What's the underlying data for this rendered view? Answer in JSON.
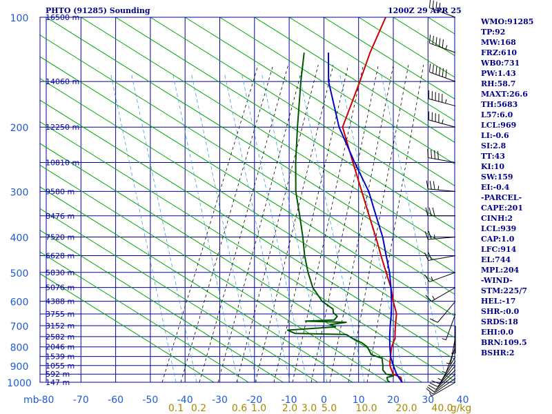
{
  "header": {
    "station_title": "PHTO (91285) Sounding",
    "valid_time": "1200Z 29 APR 25"
  },
  "colors": {
    "axis_blue": "#0000a0",
    "label_blue": "#1e5ad8",
    "dry_adiabat_green": "#00aa00",
    "moist_adiabat_black": "#000000",
    "mixing_ratio_cyan": "#3aa0d8",
    "temperature_red": "#cc0000",
    "dewpoint_green": "#005500",
    "parcel_blue": "#0000cc",
    "mixing_ratio_label": "#a88800"
  },
  "stats": [
    "WMO:91285",
    "TP:92",
    "MW:168",
    "FRZ:610",
    "WB0:731",
    "PW:1.43",
    "RH:58.7",
    "MAXT:26.6",
    "TH:5683",
    "L57:6.0",
    "LCL:969",
    "LI:-0.6",
    "SI:2.8",
    "TT:43",
    "KI:10",
    "SW:159",
    "EI:-0.4",
    "-PARCEL-",
    "CAPE:201",
    "CINH:2",
    "LCL:939",
    "CAP:1.0",
    "LFC:914",
    "EL:744",
    "MPL:204",
    "-WIND-",
    "STM:225/7",
    "HEL:-17",
    "SHR-:0.0",
    "SRDS:18",
    "EHI:0.0",
    "BRN:109.5",
    "BSHR:2"
  ],
  "chart_data": {
    "type": "line",
    "skew_t": true,
    "x_unit_label": "mb",
    "mixing_ratio_unit": "g/kg",
    "xlim": [
      -80,
      40
    ],
    "ylim": [
      1000,
      100
    ],
    "y_log": true,
    "pressure_ticks": [
      100,
      200,
      300,
      400,
      500,
      600,
      700,
      800,
      900,
      1000
    ],
    "temperature_ticks": [
      -80,
      -70,
      -60,
      -50,
      -40,
      -30,
      -20,
      -10,
      0,
      10,
      20,
      30,
      40
    ],
    "height_labels": [
      {
        "p": 100,
        "text": "16500 m"
      },
      {
        "p": 150,
        "text": "14060 m"
      },
      {
        "p": 200,
        "text": "12250 m"
      },
      {
        "p": 250,
        "text": "10810 m"
      },
      {
        "p": 300,
        "text": "9580 m"
      },
      {
        "p": 350,
        "text": "8476 m"
      },
      {
        "p": 400,
        "text": "7520 m"
      },
      {
        "p": 450,
        "text": "6628 m"
      },
      {
        "p": 500,
        "text": "5830 m"
      },
      {
        "p": 550,
        "text": "5076 m"
      },
      {
        "p": 600,
        "text": "4388 m"
      },
      {
        "p": 650,
        "text": "3755 m"
      },
      {
        "p": 700,
        "text": "3152 m"
      },
      {
        "p": 750,
        "text": "2582 m"
      },
      {
        "p": 800,
        "text": "2046 m"
      },
      {
        "p": 850,
        "text": "1539 m"
      },
      {
        "p": 900,
        "text": "1055 m"
      },
      {
        "p": 950,
        "text": "592 m"
      },
      {
        "p": 1000,
        "text": "147 m"
      }
    ],
    "mixing_ratio_labels": [
      "0.1",
      "0.2",
      "0.6",
      "1.0",
      "2.0",
      "3.0",
      "5.0",
      "10.0",
      "20.0",
      "40.0"
    ],
    "series": [
      {
        "role": "temperature",
        "points": [
          [
            1009,
            24
          ],
          [
            1000,
            22.5
          ],
          [
            970,
            21
          ],
          [
            950,
            18
          ],
          [
            925,
            16.5
          ],
          [
            900,
            15
          ],
          [
            875,
            14
          ],
          [
            850,
            13
          ],
          [
            800,
            11
          ],
          [
            760,
            10
          ],
          [
            700,
            7
          ],
          [
            650,
            4.5
          ],
          [
            600,
            0.5
          ],
          [
            550,
            -3.5
          ],
          [
            500,
            -8.5
          ],
          [
            450,
            -14
          ],
          [
            400,
            -20
          ],
          [
            350,
            -27
          ],
          [
            300,
            -35
          ],
          [
            250,
            -44.5
          ],
          [
            200,
            -56
          ],
          [
            150,
            -62
          ],
          [
            125,
            -66
          ],
          [
            100,
            -70
          ]
        ]
      },
      {
        "role": "dewpoint",
        "points": [
          [
            1009,
            20
          ],
          [
            1000,
            19
          ],
          [
            990,
            18
          ],
          [
            970,
            17
          ],
          [
            960,
            18.5
          ],
          [
            950,
            16
          ],
          [
            925,
            14
          ],
          [
            900,
            13
          ],
          [
            880,
            12
          ],
          [
            860,
            11
          ],
          [
            840,
            7
          ],
          [
            800,
            4
          ],
          [
            780,
            1.5
          ],
          [
            760,
            -2
          ],
          [
            740,
            -5
          ],
          [
            735,
            -20
          ],
          [
            720,
            -23
          ],
          [
            705,
            -10
          ],
          [
            695,
            -12
          ],
          [
            685,
            -8
          ],
          [
            680,
            -20
          ],
          [
            675,
            -12
          ],
          [
            660,
            -12
          ],
          [
            645,
            -14
          ],
          [
            630,
            -15
          ],
          [
            600,
            -20
          ],
          [
            550,
            -26
          ],
          [
            500,
            -31
          ],
          [
            450,
            -36
          ],
          [
            400,
            -41
          ],
          [
            350,
            -47
          ],
          [
            300,
            -54
          ],
          [
            250,
            -61
          ],
          [
            200,
            -69
          ],
          [
            150,
            -79
          ],
          [
            125,
            -85
          ]
        ]
      },
      {
        "role": "parcel",
        "points": [
          [
            1009,
            23.5
          ],
          [
            1000,
            22.5
          ],
          [
            950,
            19
          ],
          [
            900,
            16
          ],
          [
            850,
            13
          ],
          [
            800,
            10.5
          ],
          [
            750,
            8
          ],
          [
            700,
            5.5
          ],
          [
            650,
            3
          ],
          [
            600,
            0
          ],
          [
            550,
            -3.5
          ],
          [
            500,
            -7.5
          ],
          [
            450,
            -12.5
          ],
          [
            400,
            -18
          ],
          [
            350,
            -25
          ],
          [
            300,
            -33
          ],
          [
            250,
            -44
          ],
          [
            200,
            -57
          ],
          [
            150,
            -71
          ],
          [
            125,
            -78
          ]
        ]
      }
    ],
    "wind_barbs": [
      {
        "p": 1000,
        "dir": 240,
        "kt": 8
      },
      {
        "p": 975,
        "dir": 235,
        "kt": 10
      },
      {
        "p": 950,
        "dir": 230,
        "kt": 12
      },
      {
        "p": 925,
        "dir": 225,
        "kt": 12
      },
      {
        "p": 900,
        "dir": 220,
        "kt": 10
      },
      {
        "p": 875,
        "dir": 215,
        "kt": 10
      },
      {
        "p": 850,
        "dir": 210,
        "kt": 8
      },
      {
        "p": 800,
        "dir": 200,
        "kt": 5
      },
      {
        "p": 750,
        "dir": 190,
        "kt": 5
      },
      {
        "p": 700,
        "dir": 180,
        "kt": 5
      },
      {
        "p": 650,
        "dir": 200,
        "kt": 8
      },
      {
        "p": 600,
        "dir": 220,
        "kt": 10
      },
      {
        "p": 550,
        "dir": 240,
        "kt": 15
      },
      {
        "p": 500,
        "dir": 250,
        "kt": 15
      },
      {
        "p": 450,
        "dir": 260,
        "kt": 20
      },
      {
        "p": 400,
        "dir": 265,
        "kt": 25
      },
      {
        "p": 350,
        "dir": 270,
        "kt": 30
      },
      {
        "p": 300,
        "dir": 275,
        "kt": 35
      },
      {
        "p": 250,
        "dir": 280,
        "kt": 40
      },
      {
        "p": 200,
        "dir": 285,
        "kt": 45
      },
      {
        "p": 175,
        "dir": 285,
        "kt": 55
      },
      {
        "p": 150,
        "dir": 290,
        "kt": 60
      },
      {
        "p": 125,
        "dir": 290,
        "kt": 55
      },
      {
        "p": 100,
        "dir": 290,
        "kt": 45
      }
    ]
  }
}
